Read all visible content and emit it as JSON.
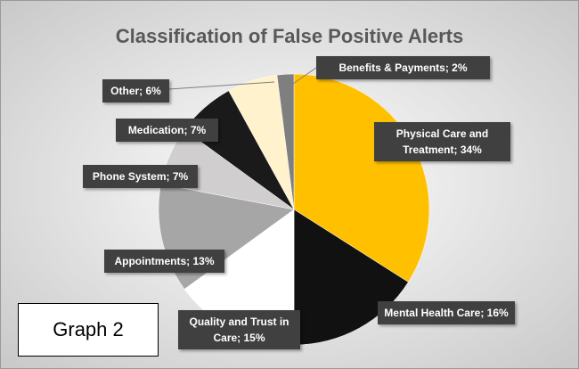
{
  "chart_data": {
    "type": "pie",
    "title": "Classification of False Positive Alerts",
    "values": [
      34,
      16,
      15,
      13,
      7,
      7,
      6,
      2
    ],
    "value_labels": [
      "Physical Care and Treatment; 34%",
      "Mental Health Care; 16%",
      "Quality and Trust in Care; 15%",
      "Appointments; 13%",
      "Phone System; 7%",
      "Medication; 7%",
      "Other; 6%",
      "Benefits & Payments; 2%"
    ],
    "colors": [
      "#ffc000",
      "#111111",
      "#ffffff",
      "#a6a6a6",
      "#d0cece",
      "#1a1a1a",
      "#fff2cc",
      "#7f7f7f"
    ],
    "annotation": "Graph 2"
  }
}
